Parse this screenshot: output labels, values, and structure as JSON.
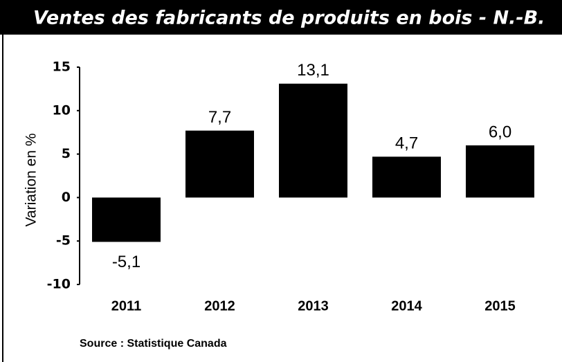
{
  "chart_data": {
    "type": "bar",
    "title": "Ventes des fabricants de produits en bois - N.-B.",
    "ylabel": "Variation en %",
    "categories": [
      "2011",
      "2012",
      "2013",
      "2014",
      "2015"
    ],
    "values": [
      -5.1,
      7.7,
      13.1,
      4.7,
      6.0
    ],
    "value_labels": [
      "-5,1",
      "7,7",
      "13,1",
      "4,7",
      "6,0"
    ],
    "color": "#000000",
    "ylim": [
      -10,
      15
    ],
    "yticks": [
      -10,
      -5,
      0,
      5,
      10,
      15
    ],
    "source": "Source : Statistique Canada"
  }
}
